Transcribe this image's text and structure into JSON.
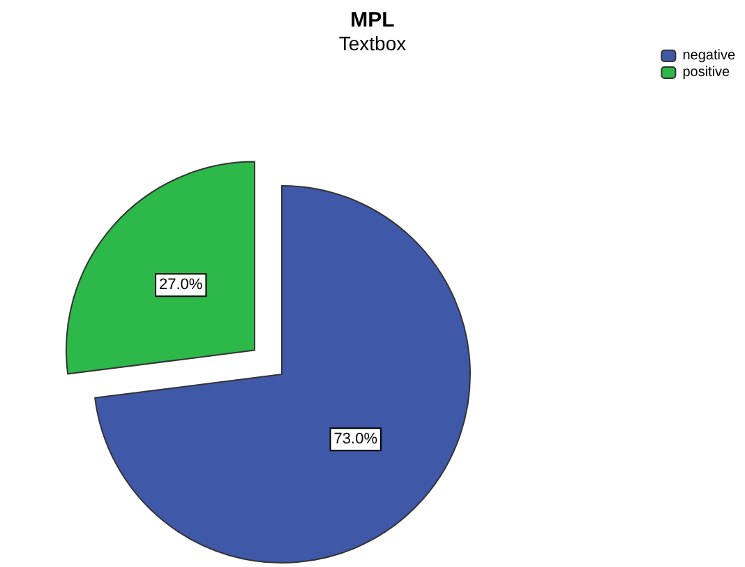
{
  "chart_data": {
    "type": "pie",
    "title": "MPL",
    "subtitle": "Textbox",
    "categories": [
      "negative",
      "positive"
    ],
    "values": [
      73,
      27
    ],
    "colors": [
      "#3f58a8",
      "#2db84a"
    ],
    "value_labels": [
      "73.0%",
      "27.0%"
    ],
    "legend": "top right"
  }
}
